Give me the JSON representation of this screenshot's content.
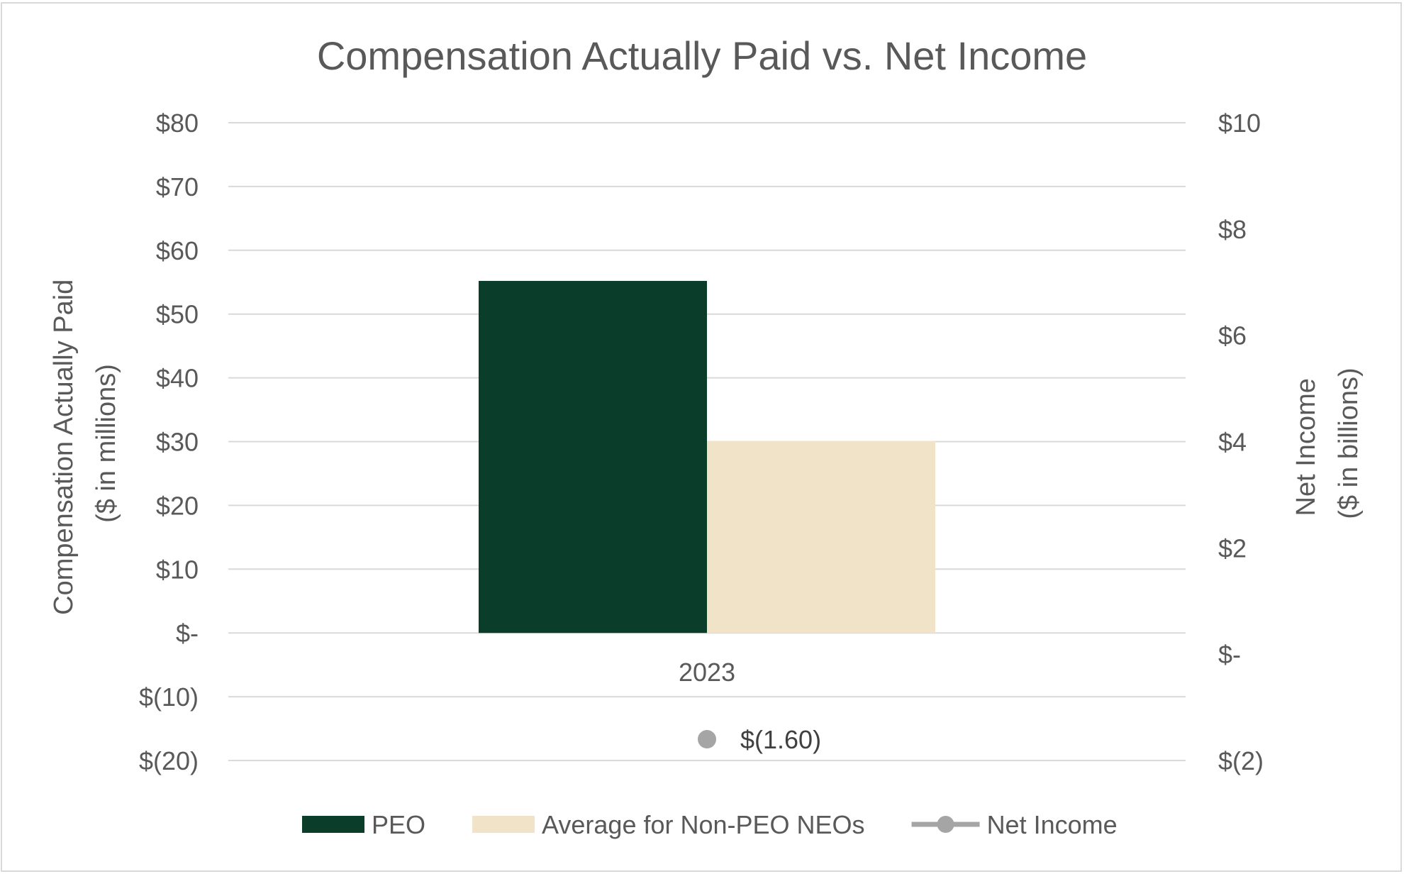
{
  "chart_data": {
    "type": "bar",
    "title": "Compensation Actually Paid vs. Net Income",
    "categories": [
      "2023"
    ],
    "left_axis": {
      "label_line1": "Compensation Actually Paid",
      "label_line2": "($ in millions)",
      "ylim": [
        -20,
        80
      ],
      "ticks": [
        80,
        70,
        60,
        50,
        40,
        30,
        20,
        10,
        0,
        -10,
        -20
      ],
      "tick_labels": [
        "$80",
        "$70",
        "$60",
        "$50",
        "$40",
        "$30",
        "$20",
        "$10",
        "$-",
        "$(10)",
        "$(20)"
      ]
    },
    "right_axis": {
      "label_line1": "Net Income",
      "label_line2": "($ in billions)",
      "ylim": [
        -2,
        10
      ],
      "ticks": [
        10,
        8,
        6,
        4,
        2,
        0,
        -2
      ],
      "tick_labels": [
        "$10",
        "$8",
        "$6",
        "$4",
        "$2",
        "$-",
        "$(2)"
      ]
    },
    "series": [
      {
        "name": "PEO",
        "type": "bar",
        "axis": "left",
        "color": "#0b3d2b",
        "values": [
          55.2
        ]
      },
      {
        "name": "Average for Non-PEO NEOs",
        "type": "bar",
        "axis": "left",
        "color": "#f0e3c8",
        "values": [
          30.1
        ]
      },
      {
        "name": "Net Income",
        "type": "line",
        "axis": "right",
        "color": "#a5a5a5",
        "values": [
          -1.6
        ],
        "data_labels": [
          "$(1.60)"
        ]
      }
    ],
    "grid": true,
    "legend_position": "bottom"
  }
}
